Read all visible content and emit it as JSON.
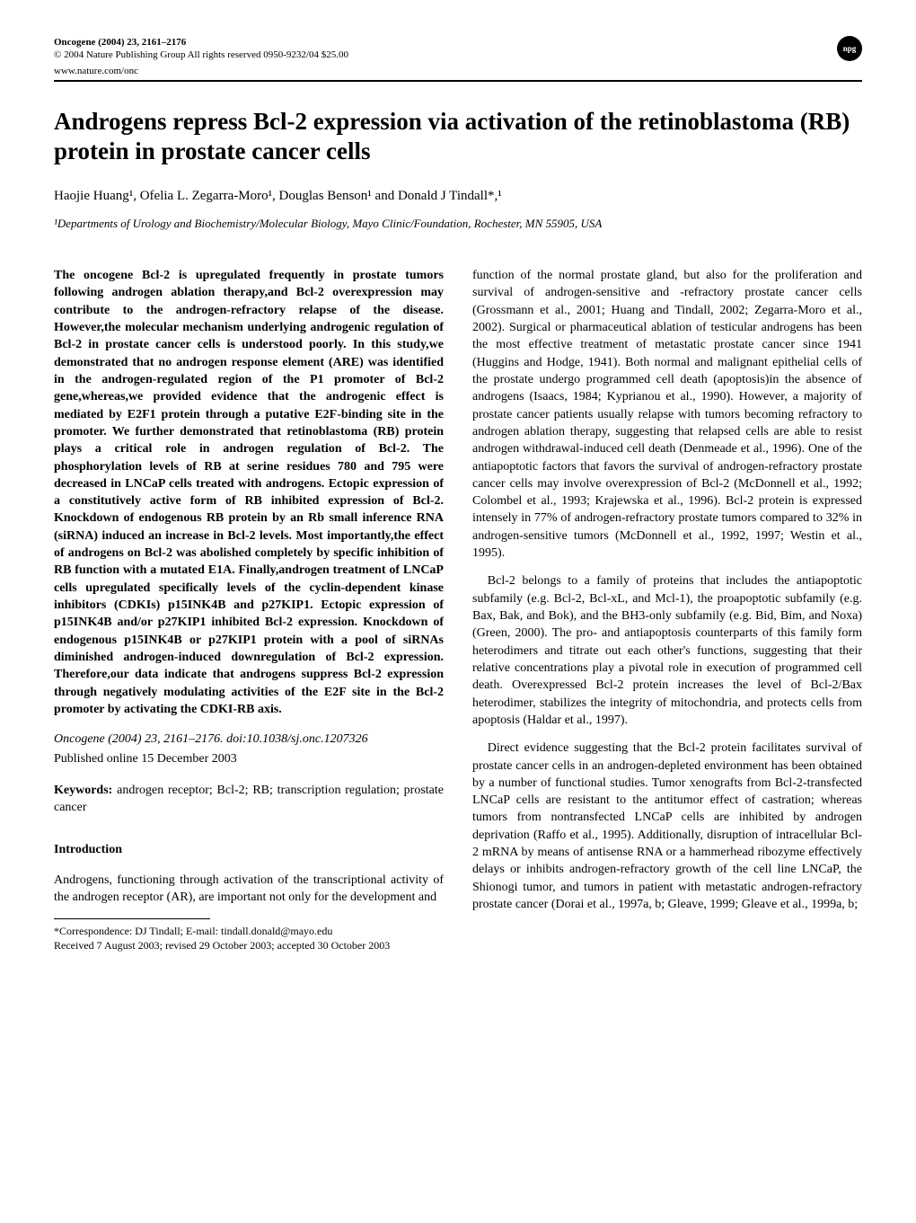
{
  "header": {
    "journal_line": "Oncogene (2004) 23, 2161–2176",
    "copyright": "© 2004 Nature Publishing Group   All rights reserved 0950-9232/04 $25.00",
    "url": "www.nature.com/onc",
    "badge": "npg"
  },
  "title": "Androgens repress Bcl-2 expression via activation of the retinoblastoma (RB) protein in prostate cancer cells",
  "authors_html": "Haojie Huang¹, Ofelia L. Zegarra-Moro¹, Douglas Benson¹ and Donald J Tindall*,¹",
  "affiliation": "¹Departments of Urology and Biochemistry/Molecular Biology, Mayo Clinic/Foundation, Rochester, MN 55905, USA",
  "abstract": "The oncogene Bcl-2 is upregulated frequently in prostate tumors following androgen ablation therapy,and Bcl-2 overexpression may contribute to the androgen-refractory relapse of the disease. However,the molecular mechanism underlying androgenic regulation of Bcl-2 in prostate cancer cells is understood poorly. In this study,we demonstrated that no androgen response element (ARE) was identified in the androgen-regulated region of the P1 promoter of Bcl-2 gene,whereas,we provided evidence that the androgenic effect is mediated by E2F1 protein through a putative E2F-binding site in the promoter. We further demonstrated that retinoblastoma (RB) protein plays a critical role in androgen regulation of Bcl-2. The phosphorylation levels of RB at serine residues 780 and 795 were decreased in LNCaP cells treated with androgens. Ectopic expression of a constitutively active form of RB inhibited expression of Bcl-2. Knockdown of endogenous RB protein by an Rb small inference RNA (siRNA) induced an increase in Bcl-2 levels. Most importantly,the effect of androgens on Bcl-2 was abolished completely by specific inhibition of RB function with a mutated E1A. Finally,androgen treatment of LNCaP cells upregulated specifically levels of the cyclin-dependent kinase inhibitors (CDKIs) p15INK4B and p27KIP1. Ectopic expression of p15INK4B and/or p27KIP1 inhibited Bcl-2 expression. Knockdown of endogenous p15INK4B or p27KIP1 protein with a pool of siRNAs diminished androgen-induced downregulation of Bcl-2 expression. Therefore,our data indicate that androgens suppress Bcl-2 expression through negatively modulating activities of the E2F site in the Bcl-2 promoter by activating the CDKI-RB axis.",
  "citation": "Oncogene (2004) 23, 2161–2176. doi:10.1038/sj.onc.1207326",
  "pub_date": "Published online 15 December 2003",
  "keywords_label": "Keywords:",
  "keywords": " androgen receptor; Bcl-2; RB; transcription regulation; prostate cancer",
  "intro_heading": "Introduction",
  "intro_p1": "Androgens, functioning through activation of the transcriptional activity of the androgen receptor (AR), are important not only for the development and",
  "right_p1": "function of the normal prostate gland, but also for the proliferation and survival of androgen-sensitive and -refractory prostate cancer cells (Grossmann et al., 2001; Huang and Tindall, 2002; Zegarra-Moro et al., 2002). Surgical or pharmaceutical ablation of testicular androgens has been the most effective treatment of metastatic prostate cancer since 1941 (Huggins and Hodge, 1941). Both normal and malignant epithelial cells of the prostate undergo programmed cell death (apoptosis)in the absence of androgens (Isaacs, 1984; Kyprianou et al., 1990). However, a majority of prostate cancer patients usually relapse with tumors becoming refractory to androgen ablation therapy, suggesting that relapsed cells are able to resist androgen withdrawal-induced cell death (Denmeade et al., 1996). One of the antiapoptotic factors that favors the survival of androgen-refractory prostate cancer cells may involve overexpression of Bcl-2 (McDonnell et al., 1992; Colombel et al., 1993; Krajewska et al., 1996). Bcl-2 protein is expressed intensely in 77% of androgen-refractory prostate tumors compared to 32% in androgen-sensitive tumors (McDonnell et al., 1992, 1997; Westin et al., 1995).",
  "right_p2": "Bcl-2 belongs to a family of proteins that includes the antiapoptotic subfamily (e.g. Bcl-2, Bcl-xL, and Mcl-1), the proapoptotic subfamily (e.g. Bax, Bak, and Bok), and the BH3-only subfamily (e.g. Bid, Bim, and Noxa) (Green, 2000). The pro- and antiapoptosis counterparts of this family form heterodimers and titrate out each other's functions, suggesting that their relative concentrations play a pivotal role in execution of programmed cell death. Overexpressed Bcl-2 protein increases the level of Bcl-2/Bax heterodimer, stabilizes the integrity of mitochondria, and protects cells from apoptosis (Haldar et al., 1997).",
  "right_p3": "Direct evidence suggesting that the Bcl-2 protein facilitates survival of prostate cancer cells in an androgen-depleted environment has been obtained by a number of functional studies. Tumor xenografts from Bcl-2-transfected LNCaP cells are resistant to the antitumor effect of castration; whereas tumors from nontransfected LNCaP cells are inhibited by androgen deprivation (Raffo et al., 1995). Additionally, disruption of intracellular Bcl-2 mRNA by means of antisense RNA or a hammerhead ribozyme effectively delays or inhibits androgen-refractory growth of the cell line LNCaP, the Shionogi tumor, and tumors in patient with metastatic androgen-refractory prostate cancer (Dorai et al., 1997a, b; Gleave, 1999; Gleave et al., 1999a, b;",
  "footnote1": "*Correspondence: DJ Tindall; E-mail: tindall.donald@mayo.edu",
  "footnote2": "Received 7 August 2003; revised 29 October 2003; accepted 30 October 2003"
}
